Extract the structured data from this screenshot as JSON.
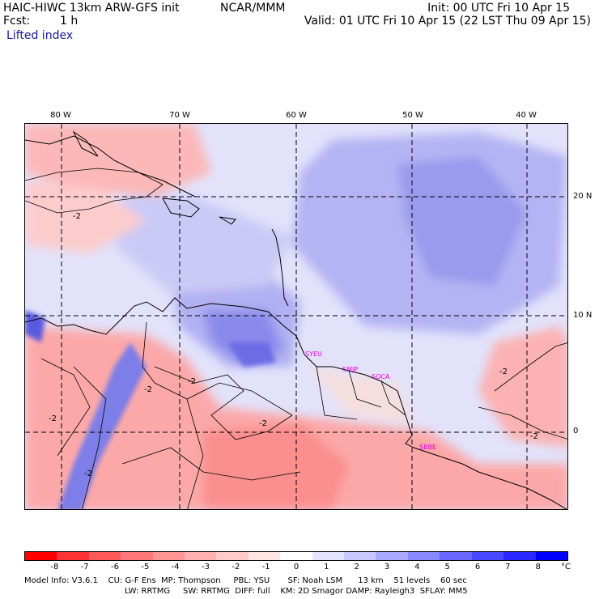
{
  "header": {
    "model_title": "HAIC-HIWC 13km ARW-GFS init",
    "org": "NCAR/MMM",
    "init": "Init: 00 UTC Fri 10 Apr 15",
    "fcst_label": "Fcst:",
    "fcst_value": "1 h",
    "valid": "Valid: 01 UTC Fri 10 Apr 15 (22 LST Thu 09 Apr 15)",
    "field": "Lifted index"
  },
  "map": {
    "lon_labels": [
      "80 W",
      "70 W",
      "60 W",
      "50 W",
      "40 W"
    ],
    "lat_labels": [
      "20 N",
      "10 N",
      "0"
    ],
    "stations": [
      "SYEU",
      "SMJP",
      "SOCA",
      "SBBE"
    ],
    "contour_labels": [
      "-2",
      "-2",
      "-2",
      "-2",
      "-2",
      "-2",
      "-2",
      "-2"
    ]
  },
  "colorbar": {
    "ticks": [
      "-8",
      "-7",
      "-6",
      "-5",
      "-4",
      "-3",
      "-2",
      "-1",
      "0",
      "1",
      "2",
      "3",
      "4",
      "5",
      "6",
      "7",
      "8"
    ],
    "unit": "°C",
    "colors": [
      "#ff0000",
      "#ff3333",
      "#ff5a5a",
      "#ff7878",
      "#ff9494",
      "#ffb0b0",
      "#ffcaca",
      "#ffe4e4",
      "#ffffff",
      "#e4e4ff",
      "#c8c8ff",
      "#a8a8ff",
      "#8888ff",
      "#6868ff",
      "#4848ff",
      "#2828ff",
      "#0000ff"
    ]
  },
  "footer": {
    "line1": "Model Info: V3.6.1    CU: G-F Ens  MP: Thompson     PBL: YSU       SF: Noah LSM      13 km    51 levels    60 sec",
    "line2": "LW: RRTMG     SW: RRTMG  DIFF: full    KM: 2D Smagor DAMP: Rayleigh3  SFLAY: MM5"
  }
}
